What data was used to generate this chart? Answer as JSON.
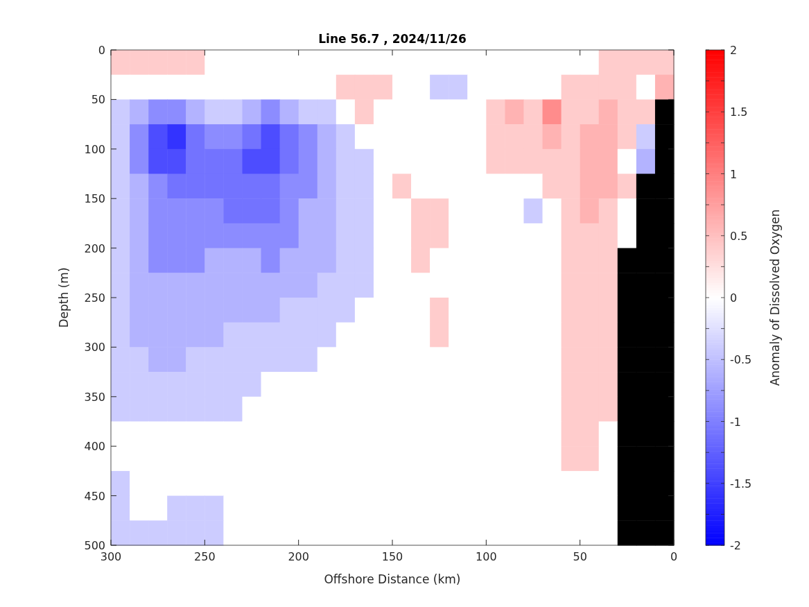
{
  "chart_data": {
    "type": "heatmap",
    "title": "Line 56.7 , 2024/11/26",
    "xlabel": "Offshore Distance (km)",
    "ylabel": "Depth (m)",
    "clabel": "Anomaly of Dissolved Oxygen",
    "xlim": [
      300,
      0
    ],
    "xticks": [
      300,
      250,
      200,
      150,
      100,
      50,
      0
    ],
    "ylim": [
      500,
      0
    ],
    "yticks": [
      0,
      50,
      100,
      150,
      200,
      250,
      300,
      350,
      400,
      450,
      500
    ],
    "x": [
      295,
      285,
      275,
      265,
      255,
      245,
      235,
      225,
      215,
      205,
      195,
      185,
      175,
      165,
      155,
      145,
      135,
      125,
      115,
      105,
      95,
      85,
      75,
      65,
      55,
      45,
      35,
      25,
      15,
      5
    ],
    "y": [
      12.5,
      37.5,
      62.5,
      87.5,
      112.5,
      137.5,
      162.5,
      187.5,
      212.5,
      237.5,
      262.5,
      287.5,
      312.5,
      337.5,
      362.5,
      387.5,
      412.5,
      437.5,
      462.5,
      487.5
    ],
    "clim": [
      -2,
      2
    ],
    "cticks": [
      -2,
      {
        "value": -1.75,
        "label": null
      },
      -1.5,
      {
        "value": -1.25,
        "label": null
      },
      -1,
      {
        "value": -0.75,
        "label": null
      },
      -0.5,
      {
        "value": -0.25,
        "label": null
      },
      0,
      {
        "value": 0.25,
        "label": null
      },
      0.5,
      {
        "value": 0.75,
        "label": null
      },
      1,
      {
        "value": 1.25,
        "label": null
      },
      1.5,
      {
        "value": 1.75,
        "label": null
      },
      2
    ],
    "cells": [
      [
        0.4,
        0.4,
        0.4,
        0.4,
        0.4,
        0,
        0,
        0,
        0,
        0,
        0,
        0,
        0,
        0,
        0,
        0,
        0,
        0,
        0,
        0,
        0,
        0,
        0,
        0,
        0,
        0,
        0.4,
        0.4,
        0.4,
        0.4
      ],
      [
        0,
        0,
        0,
        0,
        0,
        0,
        0,
        0,
        0,
        0,
        0,
        0,
        0.4,
        0.4,
        0.4,
        0,
        0,
        -0.4,
        -0.4,
        0,
        0,
        0,
        0,
        0,
        0.4,
        0.4,
        0.4,
        0.4,
        0,
        0.6
      ],
      [
        -0.4,
        -0.6,
        -0.9,
        -0.9,
        -0.6,
        -0.4,
        -0.4,
        -0.6,
        -0.9,
        -0.6,
        -0.4,
        -0.4,
        0,
        0.4,
        0,
        0,
        0,
        0,
        0,
        0,
        0.4,
        0.6,
        0.4,
        0.9,
        0.4,
        0.4,
        0.6,
        0.4,
        0.4,
        null
      ],
      [
        -0.4,
        -0.9,
        -1.4,
        -1.6,
        -1.1,
        -0.9,
        -0.9,
        -1.1,
        -1.4,
        -1.1,
        -0.9,
        -0.6,
        -0.4,
        0,
        0,
        0,
        0,
        0,
        0,
        0,
        0.4,
        0.4,
        0.4,
        0.6,
        0.4,
        0.6,
        0.6,
        0.4,
        -0.4,
        null
      ],
      [
        -0.4,
        -0.9,
        -1.4,
        -1.4,
        -1.1,
        -1.1,
        -1.1,
        -1.4,
        -1.4,
        -1.1,
        -0.9,
        -0.6,
        -0.4,
        -0.4,
        0,
        0,
        0,
        0,
        0,
        0,
        0.4,
        0.4,
        0.4,
        0.4,
        0.4,
        0.6,
        0.6,
        0,
        -0.6,
        null
      ],
      [
        -0.4,
        -0.6,
        -0.9,
        -1.1,
        -1.1,
        -1.1,
        -1.1,
        -1.1,
        -1.1,
        -0.9,
        -0.9,
        -0.6,
        -0.4,
        -0.4,
        0,
        0.4,
        0,
        0,
        0,
        0,
        0,
        0,
        0,
        0.4,
        0.4,
        0.6,
        0.6,
        0.4,
        null,
        null
      ],
      [
        -0.4,
        -0.6,
        -0.9,
        -0.9,
        -0.9,
        -0.9,
        -1.1,
        -1.1,
        -1.1,
        -0.9,
        -0.6,
        -0.6,
        -0.4,
        -0.4,
        0,
        0,
        0.4,
        0.4,
        0,
        0,
        0,
        0,
        -0.4,
        0,
        0.4,
        0.6,
        0.4,
        0,
        null,
        null
      ],
      [
        -0.4,
        -0.6,
        -0.9,
        -0.9,
        -0.9,
        -0.9,
        -0.9,
        -0.9,
        -0.9,
        -0.9,
        -0.6,
        -0.6,
        -0.4,
        -0.4,
        0,
        0,
        0.4,
        0.4,
        0,
        0,
        0,
        0,
        0,
        0,
        0.4,
        0.4,
        0.4,
        0,
        null,
        null
      ],
      [
        -0.4,
        -0.6,
        -0.9,
        -0.9,
        -0.9,
        -0.6,
        -0.6,
        -0.6,
        -0.9,
        -0.6,
        -0.6,
        -0.6,
        -0.4,
        -0.4,
        0,
        0,
        0.4,
        0,
        0,
        0,
        0,
        0,
        0,
        0,
        0.4,
        0.4,
        0.4,
        null,
        null,
        null
      ],
      [
        -0.4,
        -0.6,
        -0.6,
        -0.6,
        -0.6,
        -0.6,
        -0.6,
        -0.6,
        -0.6,
        -0.6,
        -0.6,
        -0.4,
        -0.4,
        -0.4,
        0,
        0,
        0,
        0,
        0,
        0,
        0,
        0,
        0,
        0,
        0.4,
        0.4,
        0.4,
        null,
        null,
        null
      ],
      [
        -0.4,
        -0.6,
        -0.6,
        -0.6,
        -0.6,
        -0.6,
        -0.6,
        -0.6,
        -0.6,
        -0.4,
        -0.4,
        -0.4,
        -0.4,
        0,
        0,
        0,
        0,
        0.4,
        0,
        0,
        0,
        0,
        0,
        0,
        0.4,
        0.4,
        0.4,
        null,
        null,
        null
      ],
      [
        -0.4,
        -0.6,
        -0.6,
        -0.6,
        -0.6,
        -0.6,
        -0.4,
        -0.4,
        -0.4,
        -0.4,
        -0.4,
        -0.4,
        0,
        0,
        0,
        0,
        0,
        0.4,
        0,
        0,
        0,
        0,
        0,
        0,
        0.4,
        0.4,
        0.4,
        null,
        null,
        null
      ],
      [
        -0.4,
        -0.4,
        -0.6,
        -0.6,
        -0.4,
        -0.4,
        -0.4,
        -0.4,
        -0.4,
        -0.4,
        -0.4,
        0,
        0,
        0,
        0,
        0,
        0,
        0,
        0,
        0,
        0,
        0,
        0,
        0,
        0.4,
        0.4,
        0.4,
        null,
        null,
        null
      ],
      [
        -0.4,
        -0.4,
        -0.4,
        -0.4,
        -0.4,
        -0.4,
        -0.4,
        -0.4,
        0,
        0,
        0,
        0,
        0,
        0,
        0,
        0,
        0,
        0,
        0,
        0,
        0,
        0,
        0,
        0,
        0.4,
        0.4,
        0.4,
        null,
        null,
        null
      ],
      [
        -0.4,
        -0.4,
        -0.4,
        -0.4,
        -0.4,
        -0.4,
        -0.4,
        0,
        0,
        0,
        0,
        0,
        0,
        0,
        0,
        0,
        0,
        0,
        0,
        0,
        0,
        0,
        0,
        0,
        0.4,
        0.4,
        0.4,
        null,
        null,
        null
      ],
      [
        0,
        0,
        0,
        0,
        0,
        0,
        0,
        0,
        0,
        0,
        0,
        0,
        0,
        0,
        0,
        0,
        0,
        0,
        0,
        0,
        0,
        0,
        0,
        0,
        0.4,
        0.4,
        0,
        null,
        null,
        null
      ],
      [
        0,
        0,
        0,
        0,
        0,
        0,
        0,
        0,
        0,
        0,
        0,
        0,
        0,
        0,
        0,
        0,
        0,
        0,
        0,
        0,
        0,
        0,
        0,
        0,
        0.4,
        0.4,
        0,
        null,
        null,
        null
      ],
      [
        -0.4,
        0,
        0,
        0,
        0,
        0,
        0,
        0,
        0,
        0,
        0,
        0,
        0,
        0,
        0,
        0,
        0,
        0,
        0,
        0,
        0,
        0,
        0,
        0,
        0,
        0,
        0,
        null,
        null,
        null
      ],
      [
        -0.4,
        0,
        0,
        -0.4,
        -0.4,
        -0.4,
        0,
        0,
        0,
        0,
        0,
        0,
        0,
        0,
        0,
        0,
        0,
        0,
        0,
        0,
        0,
        0,
        0,
        0,
        0,
        0,
        0,
        null,
        null,
        null
      ],
      [
        -0.4,
        -0.4,
        -0.4,
        -0.4,
        -0.4,
        -0.4,
        0,
        0,
        0,
        0,
        0,
        0,
        0,
        0,
        0,
        0,
        0,
        0,
        0,
        0,
        0,
        0,
        0,
        0,
        0,
        0,
        0,
        null,
        null,
        null
      ]
    ]
  }
}
